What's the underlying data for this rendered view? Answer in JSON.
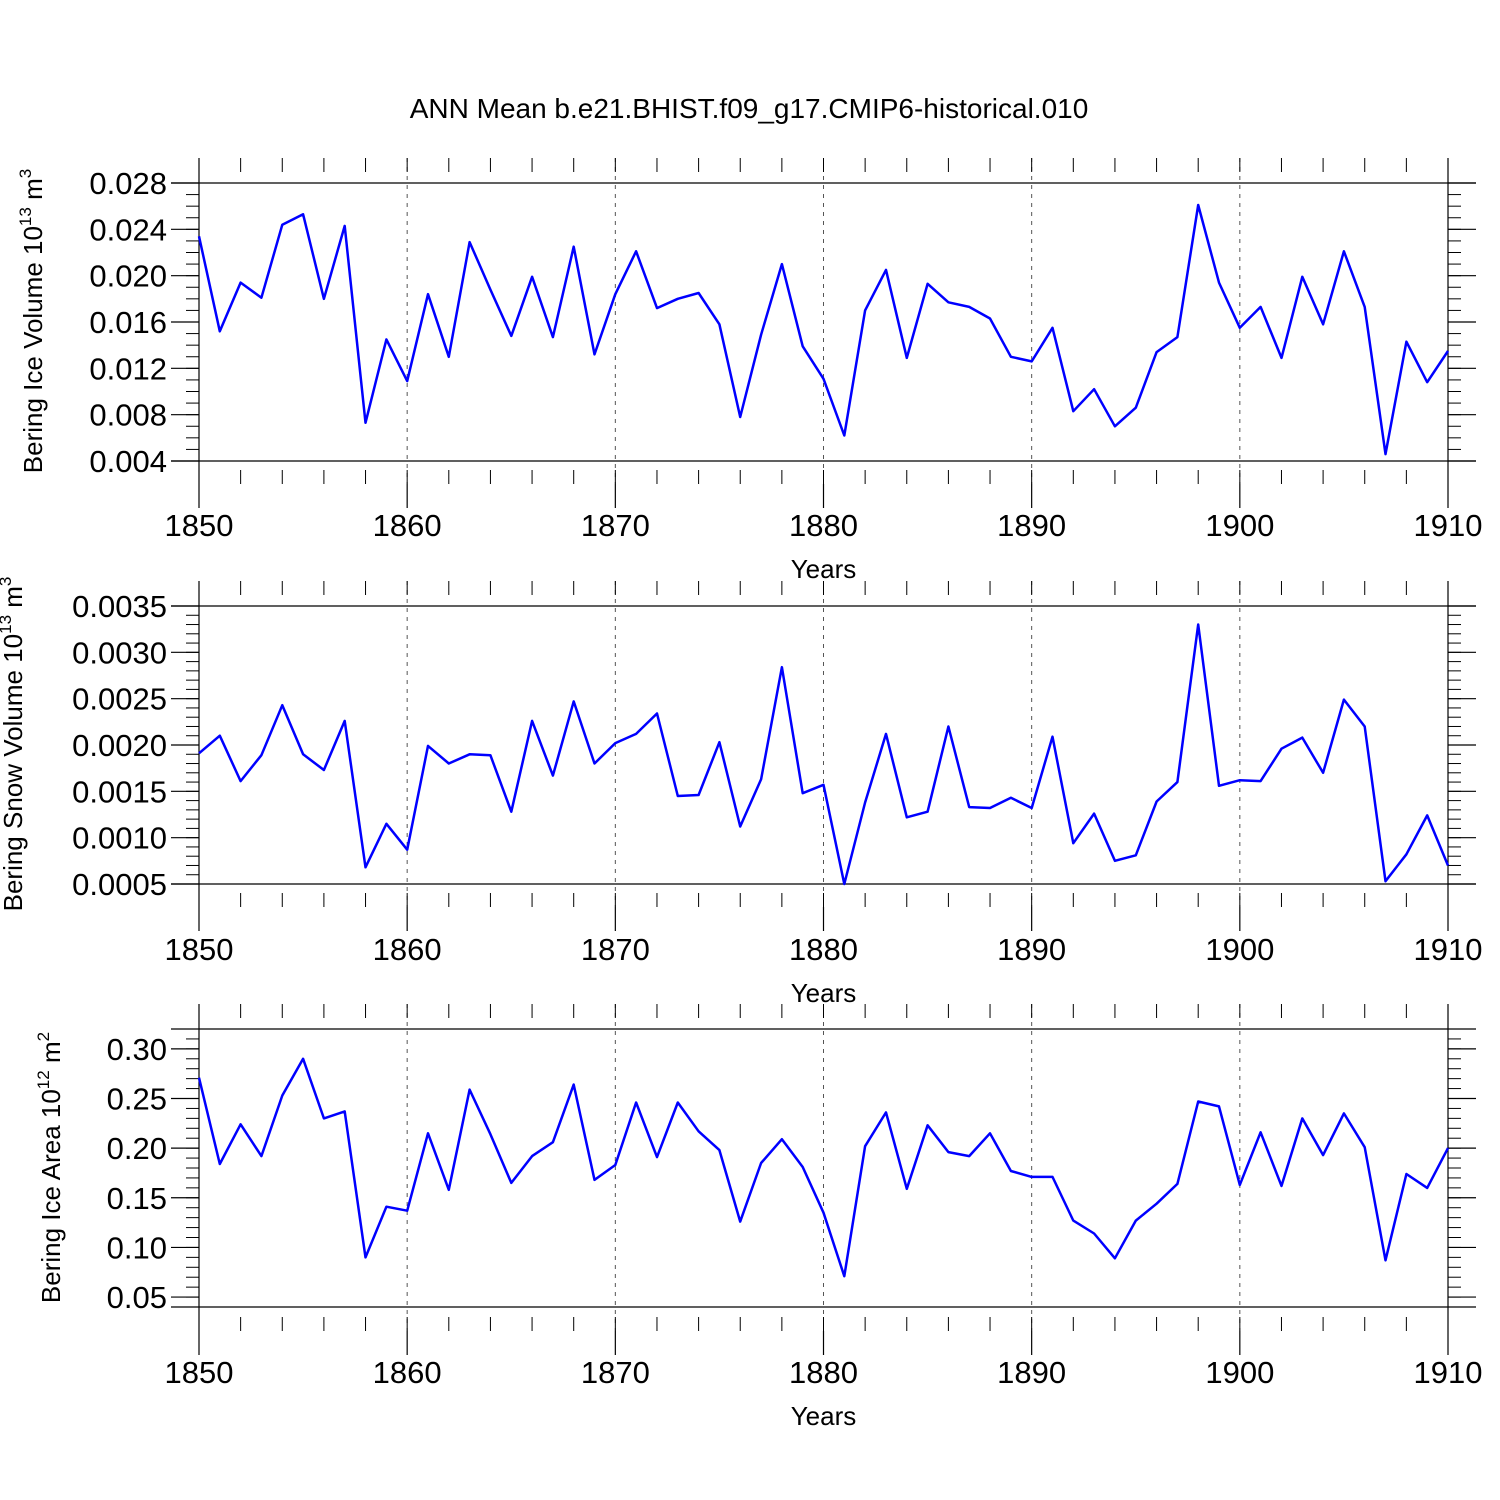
{
  "title": "ANN Mean b.e21.BHIST.f09_g17.CMIP6-historical.010",
  "colors": {
    "series": "#0000ff",
    "axis": "#000000",
    "grid": "#555555",
    "background": "#ffffff"
  },
  "chart_data": [
    {
      "type": "line",
      "series_name": "Bering Ice Volume",
      "ylabel": "Bering Ice Volume 10",
      "ylabel_exponent": "13",
      "ylabel_unit": " m",
      "ylabel_unit_exponent": "3",
      "xlabel": "Years",
      "xlim": [
        1850,
        1910
      ],
      "ylim": [
        0.004,
        0.028
      ],
      "y_ticks": [
        0.004,
        0.008,
        0.012,
        0.016,
        0.02,
        0.024,
        0.028
      ],
      "y_tick_labels": [
        "0.004",
        "0.008",
        "0.012",
        "0.016",
        "0.020",
        "0.024",
        "0.028"
      ],
      "y_minor_step": 0.001,
      "x_ticks": [
        1850,
        1860,
        1870,
        1880,
        1890,
        1900,
        1910
      ],
      "x_tick_labels": [
        "1850",
        "1860",
        "1870",
        "1880",
        "1890",
        "1900",
        "1910"
      ],
      "x_minor_step": 2,
      "grid_x": [
        1860,
        1870,
        1880,
        1890,
        1900
      ],
      "x": [
        1850,
        1851,
        1852,
        1853,
        1854,
        1855,
        1856,
        1857,
        1858,
        1859,
        1860,
        1861,
        1862,
        1863,
        1864,
        1865,
        1866,
        1867,
        1868,
        1869,
        1870,
        1871,
        1872,
        1873,
        1874,
        1875,
        1876,
        1877,
        1878,
        1879,
        1880,
        1881,
        1882,
        1883,
        1884,
        1885,
        1886,
        1887,
        1888,
        1889,
        1890,
        1891,
        1892,
        1893,
        1894,
        1895,
        1896,
        1897,
        1898,
        1899,
        1900,
        1901,
        1902,
        1903,
        1904,
        1905,
        1906,
        1907,
        1908,
        1909,
        1910
      ],
      "y": [
        0.0234,
        0.0152,
        0.0194,
        0.0181,
        0.0244,
        0.0253,
        0.018,
        0.0243,
        0.0073,
        0.0145,
        0.0109,
        0.0184,
        0.013,
        0.0229,
        0.0188,
        0.0148,
        0.0199,
        0.0147,
        0.0225,
        0.0132,
        0.0184,
        0.0221,
        0.0172,
        0.018,
        0.0185,
        0.0158,
        0.0078,
        0.0149,
        0.021,
        0.0139,
        0.0111,
        0.0062,
        0.017,
        0.0205,
        0.0129,
        0.0193,
        0.0177,
        0.0173,
        0.0163,
        0.013,
        0.0126,
        0.0155,
        0.0083,
        0.0102,
        0.007,
        0.0086,
        0.0134,
        0.0147,
        0.0261,
        0.0194,
        0.0155,
        0.0173,
        0.0129,
        0.0199,
        0.0158,
        0.0221,
        0.0173,
        0.0046,
        0.0143,
        0.0108,
        0.0135
      ]
    },
    {
      "type": "line",
      "series_name": "Bering Snow Volume",
      "ylabel": "Bering Snow Volume 10",
      "ylabel_exponent": "13",
      "ylabel_unit": " m",
      "ylabel_unit_exponent": "3",
      "xlabel": "Years",
      "xlim": [
        1850,
        1910
      ],
      "ylim": [
        0.0005,
        0.0035
      ],
      "y_ticks": [
        0.0005,
        0.001,
        0.0015,
        0.002,
        0.0025,
        0.003,
        0.0035
      ],
      "y_tick_labels": [
        "0.0005",
        "0.0010",
        "0.0015",
        "0.0020",
        "0.0025",
        "0.0030",
        "0.0035"
      ],
      "y_minor_step": 0.0001,
      "x_ticks": [
        1850,
        1860,
        1870,
        1880,
        1890,
        1900,
        1910
      ],
      "x_tick_labels": [
        "1850",
        "1860",
        "1870",
        "1880",
        "1890",
        "1900",
        "1910"
      ],
      "x_minor_step": 2,
      "grid_x": [
        1860,
        1870,
        1880,
        1890,
        1900
      ],
      "x": [
        1850,
        1851,
        1852,
        1853,
        1854,
        1855,
        1856,
        1857,
        1858,
        1859,
        1860,
        1861,
        1862,
        1863,
        1864,
        1865,
        1866,
        1867,
        1868,
        1869,
        1870,
        1871,
        1872,
        1873,
        1874,
        1875,
        1876,
        1877,
        1878,
        1879,
        1880,
        1881,
        1882,
        1883,
        1884,
        1885,
        1886,
        1887,
        1888,
        1889,
        1890,
        1891,
        1892,
        1893,
        1894,
        1895,
        1896,
        1897,
        1898,
        1899,
        1900,
        1901,
        1902,
        1903,
        1904,
        1905,
        1906,
        1907,
        1908,
        1909,
        1910
      ],
      "y": [
        0.00191,
        0.0021,
        0.00161,
        0.00189,
        0.00243,
        0.0019,
        0.00173,
        0.00226,
        0.00068,
        0.00115,
        0.00087,
        0.00199,
        0.0018,
        0.0019,
        0.00189,
        0.00128,
        0.00226,
        0.00167,
        0.00247,
        0.0018,
        0.00202,
        0.00212,
        0.00234,
        0.00145,
        0.00146,
        0.00203,
        0.00112,
        0.00163,
        0.00284,
        0.00148,
        0.00157,
        0.0005,
        0.00138,
        0.00212,
        0.00122,
        0.00128,
        0.0022,
        0.00133,
        0.00132,
        0.00143,
        0.00132,
        0.00209,
        0.00094,
        0.00126,
        0.00075,
        0.00081,
        0.00139,
        0.0016,
        0.0033,
        0.00156,
        0.00162,
        0.00161,
        0.00196,
        0.00208,
        0.0017,
        0.00249,
        0.0022,
        0.00053,
        0.00082,
        0.00124,
        0.0007
      ]
    },
    {
      "type": "line",
      "series_name": "Bering Ice Area",
      "ylabel": "Bering Ice Area 10",
      "ylabel_exponent": "12",
      "ylabel_unit": " m",
      "ylabel_unit_exponent": "2",
      "xlabel": "Years",
      "xlim": [
        1850,
        1910
      ],
      "ylim": [
        0.04,
        0.32
      ],
      "y_ticks": [
        0.05,
        0.1,
        0.15,
        0.2,
        0.25,
        0.3
      ],
      "y_tick_labels": [
        "0.05",
        "0.10",
        "0.15",
        "0.20",
        "0.25",
        "0.30"
      ],
      "y_minor_step": 0.01,
      "x_ticks": [
        1850,
        1860,
        1870,
        1880,
        1890,
        1900,
        1910
      ],
      "x_tick_labels": [
        "1850",
        "1860",
        "1870",
        "1880",
        "1890",
        "1900",
        "1910"
      ],
      "x_minor_step": 2,
      "grid_x": [
        1860,
        1870,
        1880,
        1890,
        1900
      ],
      "x": [
        1850,
        1851,
        1852,
        1853,
        1854,
        1855,
        1856,
        1857,
        1858,
        1859,
        1860,
        1861,
        1862,
        1863,
        1864,
        1865,
        1866,
        1867,
        1868,
        1869,
        1870,
        1871,
        1872,
        1873,
        1874,
        1875,
        1876,
        1877,
        1878,
        1879,
        1880,
        1881,
        1882,
        1883,
        1884,
        1885,
        1886,
        1887,
        1888,
        1889,
        1890,
        1891,
        1892,
        1893,
        1894,
        1895,
        1896,
        1897,
        1898,
        1899,
        1900,
        1901,
        1902,
        1903,
        1904,
        1905,
        1906,
        1907,
        1908,
        1909,
        1910
      ],
      "y": [
        0.271,
        0.184,
        0.224,
        0.192,
        0.253,
        0.29,
        0.23,
        0.237,
        0.09,
        0.141,
        0.137,
        0.215,
        0.158,
        0.259,
        0.214,
        0.165,
        0.192,
        0.206,
        0.264,
        0.168,
        0.183,
        0.246,
        0.191,
        0.246,
        0.217,
        0.198,
        0.126,
        0.185,
        0.209,
        0.181,
        0.135,
        0.071,
        0.202,
        0.236,
        0.159,
        0.223,
        0.196,
        0.192,
        0.215,
        0.177,
        0.171,
        0.171,
        0.127,
        0.114,
        0.089,
        0.127,
        0.144,
        0.164,
        0.247,
        0.242,
        0.163,
        0.216,
        0.162,
        0.23,
        0.193,
        0.235,
        0.201,
        0.087,
        0.174,
        0.16,
        0.2
      ]
    }
  ]
}
